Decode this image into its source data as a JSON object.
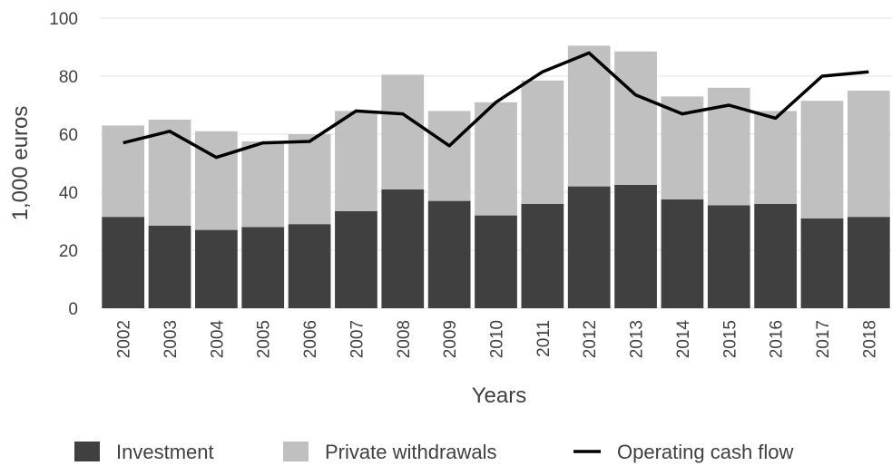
{
  "chart_data": {
    "type": "bar",
    "stacked": true,
    "title": "",
    "xlabel": "Years",
    "ylabel": "1,000 euros",
    "ylim": [
      0,
      100
    ],
    "yticks": [
      "0",
      "20",
      "40",
      "60",
      "80",
      "100"
    ],
    "grid": true,
    "legend_position": "bottom",
    "categories": [
      "2002",
      "2003",
      "2004",
      "2005",
      "2006",
      "2007",
      "2008",
      "2009",
      "2010",
      "2011",
      "2012",
      "2013",
      "2014",
      "2015",
      "2016",
      "2017",
      "2018"
    ],
    "series": [
      {
        "name": "Investment",
        "kind": "bar",
        "color": "#404040",
        "values": [
          31.5,
          28.5,
          27,
          28,
          29,
          33.5,
          41,
          37,
          32,
          36,
          42,
          42.5,
          37.5,
          35.5,
          36,
          31,
          31.5
        ]
      },
      {
        "name": "Private withdrawals",
        "kind": "bar",
        "color": "#c0c0c0",
        "values": [
          31.5,
          36.5,
          34,
          29.5,
          31,
          34.5,
          39.5,
          31,
          39,
          42.5,
          48.5,
          46,
          35.5,
          40.5,
          32,
          40.5,
          43.5
        ]
      },
      {
        "name": "Operating cash flow",
        "kind": "line",
        "color": "#000000",
        "values": [
          57,
          61,
          52,
          57,
          57.5,
          68,
          67,
          56,
          71,
          81.5,
          88,
          73.5,
          67,
          70,
          65.5,
          80,
          81.5
        ]
      }
    ]
  }
}
